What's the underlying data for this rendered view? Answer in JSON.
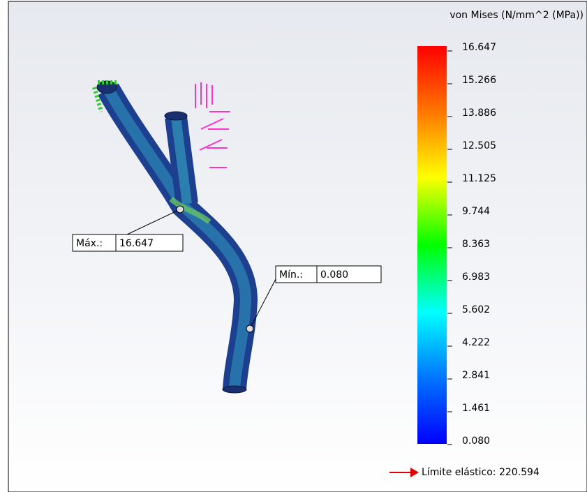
{
  "legend": {
    "title": "von Mises (N/mm^2 (MPa))",
    "ticks": [
      "16.647",
      "15.266",
      "13.886",
      "12.505",
      "11.125",
      "9.744",
      "8.363",
      "6.983",
      "5.602",
      "4.222",
      "2.841",
      "1.461",
      "0.080"
    ]
  },
  "probes": [
    {
      "label": "Máx.:",
      "value": "16.647"
    },
    {
      "label": "Mín.:",
      "value": "0.080"
    }
  ],
  "yield": {
    "label": "Límite elástico:",
    "value": "220.594"
  }
}
